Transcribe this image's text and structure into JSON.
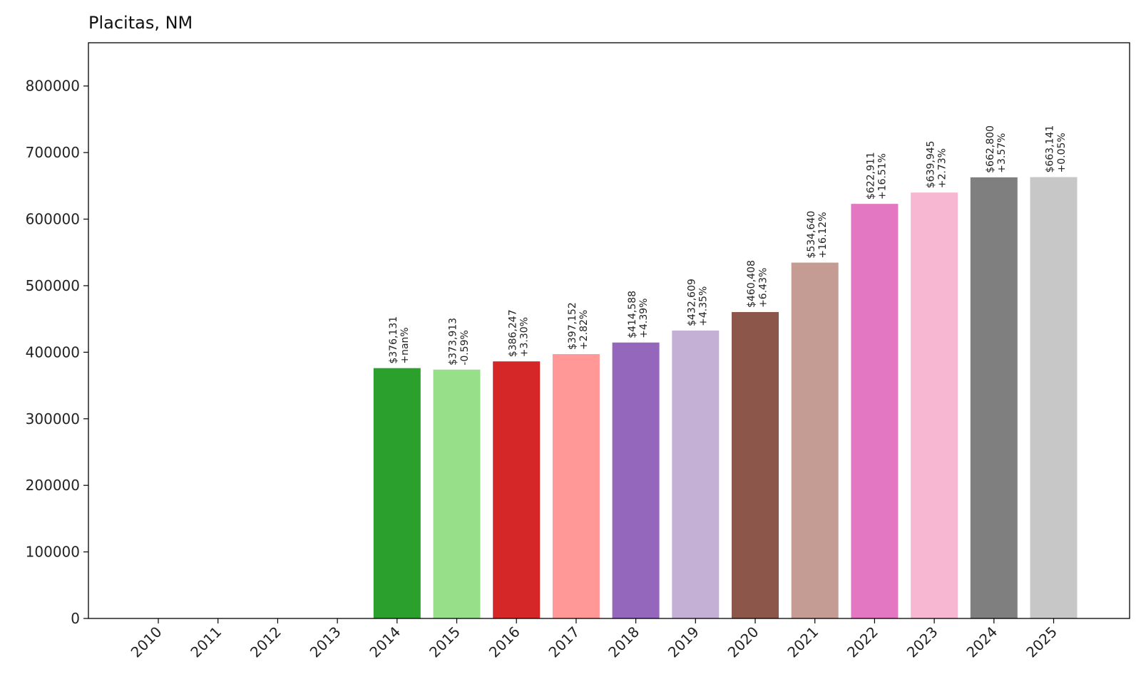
{
  "chart_data": {
    "type": "bar",
    "title": "Placitas, NM",
    "xlabel": "",
    "ylabel": "",
    "ylim": [
      0,
      865000
    ],
    "yticks": [
      0,
      100000,
      200000,
      300000,
      400000,
      500000,
      600000,
      700000,
      800000
    ],
    "ytick_labels": [
      "0",
      "100000",
      "200000",
      "300000",
      "400000",
      "500000",
      "600000",
      "700000",
      "800000"
    ],
    "categories": [
      "2010",
      "2011",
      "2012",
      "2013",
      "2014",
      "2015",
      "2016",
      "2017",
      "2018",
      "2019",
      "2020",
      "2021",
      "2022",
      "2023",
      "2024",
      "2025"
    ],
    "values": [
      0,
      0,
      0,
      0,
      376131,
      373913,
      386247,
      397152,
      414588,
      432609,
      460408,
      534640,
      622911,
      639945,
      662800,
      663141
    ],
    "value_labels": [
      "",
      "",
      "",
      "",
      "$376,131",
      "$373,913",
      "$386,247",
      "$397,152",
      "$414,588",
      "$432,609",
      "$460,408",
      "$534,640",
      "$622,911",
      "$639,945",
      "$662,800",
      "$663,141"
    ],
    "change_labels": [
      "",
      "",
      "",
      "",
      "+nan%",
      "-0.59%",
      "+3.30%",
      "+2.82%",
      "+4.39%",
      "+4.35%",
      "+6.43%",
      "+16.12%",
      "+16.51%",
      "+2.73%",
      "+3.57%",
      "+0.05%"
    ],
    "colors": [
      "#1f77b4",
      "#aec7e8",
      "#ff7f0e",
      "#ffbb78",
      "#2ca02c",
      "#98df8a",
      "#d62728",
      "#ff9896",
      "#9467bd",
      "#c5b0d5",
      "#8c564b",
      "#c49c94",
      "#e377c2",
      "#f7b6d2",
      "#7f7f7f",
      "#c7c7c7"
    ],
    "grid": false,
    "legend": "none"
  }
}
